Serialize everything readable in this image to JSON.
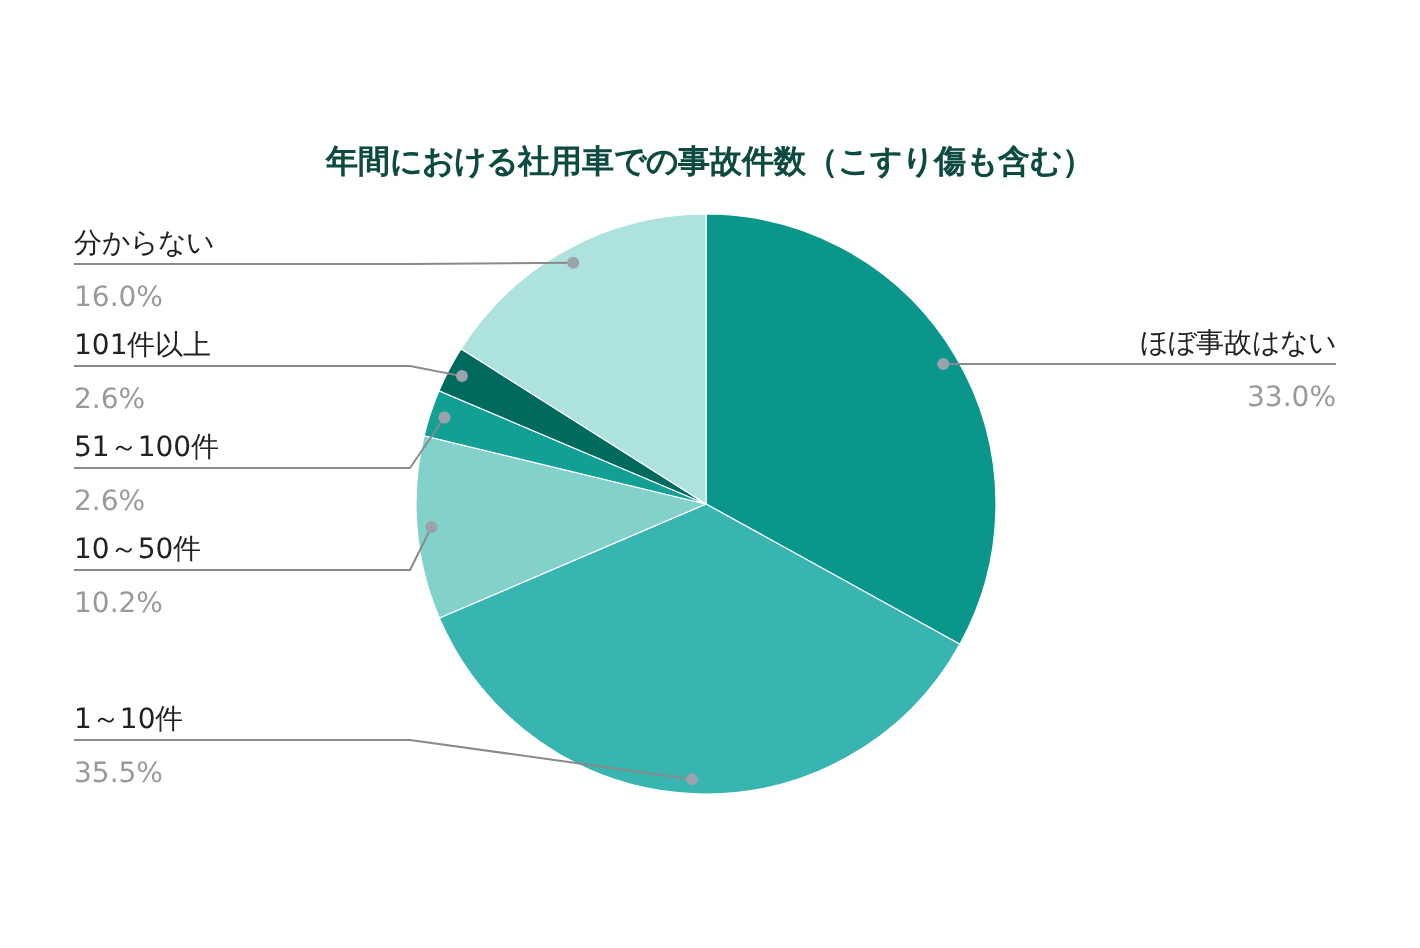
{
  "chart_data": {
    "type": "pie",
    "title": "年間における社用車での事故件数（こすり傷も含む）",
    "categories": [
      "ほぼ事故はない",
      "1～10件",
      "10～50件",
      "51～100件",
      "101件以上",
      "分からない"
    ],
    "values": [
      33.0,
      35.5,
      10.2,
      2.6,
      2.6,
      16.0
    ],
    "value_labels": [
      "33.0%",
      "35.5%",
      "10.2%",
      "2.6%",
      "2.6%",
      "16.0%"
    ],
    "colors": [
      "#0a968b",
      "#38b5b0",
      "#82d1cb",
      "#13a094",
      "#006a5f",
      "#aee2de"
    ]
  }
}
